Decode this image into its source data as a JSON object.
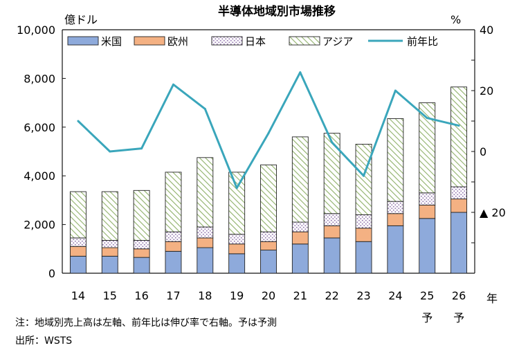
{
  "chart_data": {
    "type": "bar",
    "title": "半導体地域別市場推移",
    "left_axis_unit": "億ドル",
    "right_axis_unit": "%",
    "x_axis_unit": "年",
    "categories": [
      "14",
      "15",
      "16",
      "17",
      "18",
      "19",
      "20",
      "21",
      "22",
      "23",
      "24",
      "25\n予",
      "26\n予"
    ],
    "ylim_left": [
      0,
      10000
    ],
    "yticks_left": [
      "0",
      "2,000",
      "4,000",
      "6,000",
      "8,000",
      "10,000"
    ],
    "ylim_right": [
      -40,
      40
    ],
    "yticks_right": [
      {
        "value": 40,
        "label": "40"
      },
      {
        "value": 20,
        "label": "20"
      },
      {
        "value": 0,
        "label": "0"
      },
      {
        "value": -20,
        "label": "▲ 20"
      }
    ],
    "stacked": true,
    "series": [
      {
        "name": "米国",
        "type": "bar",
        "color": "#8eaadb",
        "pattern": "solid",
        "values": [
          700,
          700,
          650,
          900,
          1050,
          800,
          950,
          1200,
          1450,
          1300,
          1950,
          2250,
          2500
        ]
      },
      {
        "name": "欧州",
        "type": "bar",
        "color": "#f4b183",
        "pattern": "solid",
        "values": [
          400,
          350,
          350,
          400,
          400,
          400,
          350,
          500,
          500,
          550,
          500,
          550,
          550
        ]
      },
      {
        "name": "日本",
        "type": "bar",
        "color": "#e8d9ee",
        "pattern": "dots",
        "values": [
          350,
          300,
          350,
          400,
          450,
          400,
          400,
          400,
          500,
          550,
          500,
          500,
          500
        ]
      },
      {
        "name": "アジア",
        "type": "bar",
        "color": "#a9c47f",
        "pattern": "hatch",
        "values": [
          1900,
          2000,
          2050,
          2450,
          2850,
          2550,
          2750,
          3500,
          3300,
          2900,
          3400,
          3700,
          4100
        ]
      },
      {
        "name": "前年比",
        "type": "line",
        "axis": "right",
        "color": "#3aa6bb",
        "values": [
          10,
          0,
          1,
          22,
          14,
          -12,
          6,
          26,
          3,
          -8,
          20,
          11,
          8.5
        ]
      }
    ],
    "legend_position": "top-left",
    "grid": false,
    "notes": [
      "注：地域別売上高は左軸、前年比は伸び率で右軸。予は予測",
      "出所：WSTS"
    ]
  }
}
